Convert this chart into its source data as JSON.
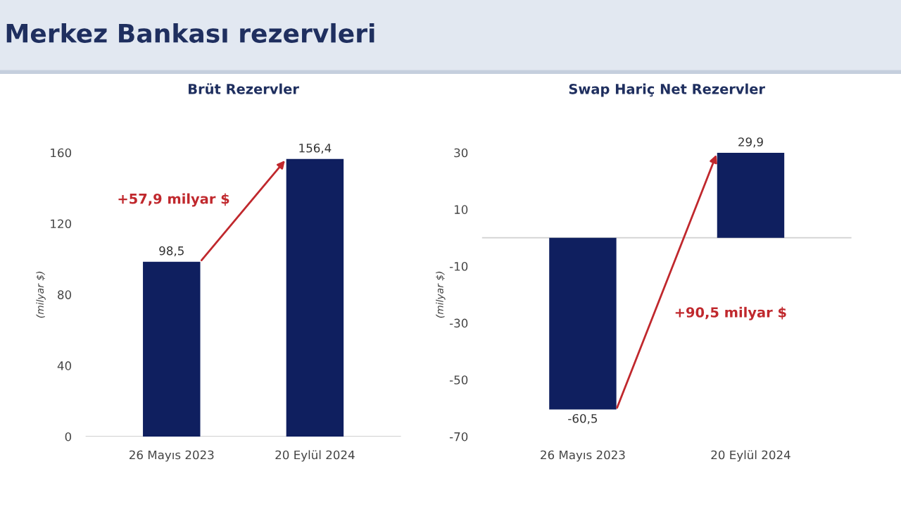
{
  "chart_data": [
    {
      "type": "other",
      "title": "Merkez Bankası rezervleri"
    },
    {
      "type": "bar",
      "title": "Brüt Rezervler",
      "ylabel": "(milyar $)",
      "categories": [
        "26 Mayıs 2023",
        "20 Eylül 2024"
      ],
      "values": [
        98.5,
        156.4
      ],
      "value_labels": [
        "98,5",
        "156,4"
      ],
      "color": "#0f1f5f",
      "ylim": [
        0,
        160
      ],
      "yticks": [
        0,
        40,
        80,
        120,
        160
      ],
      "grid": false,
      "annotations": [
        "+57,9 milyar $"
      ]
    },
    {
      "type": "bar",
      "title": "Swap Hariç Net Rezervler",
      "ylabel": "(milyar $)",
      "categories": [
        "26 Mayıs 2023",
        "20 Eylül 2024"
      ],
      "values": [
        -60.5,
        29.9
      ],
      "value_labels": [
        "-60,5",
        "29,9"
      ],
      "color": "#0f1f5f",
      "ylim": [
        -70,
        30
      ],
      "yticks": [
        -70,
        -50,
        -30,
        -10,
        10,
        30
      ],
      "grid": false,
      "annotations": [
        "+90,5 milyar $"
      ]
    }
  ]
}
